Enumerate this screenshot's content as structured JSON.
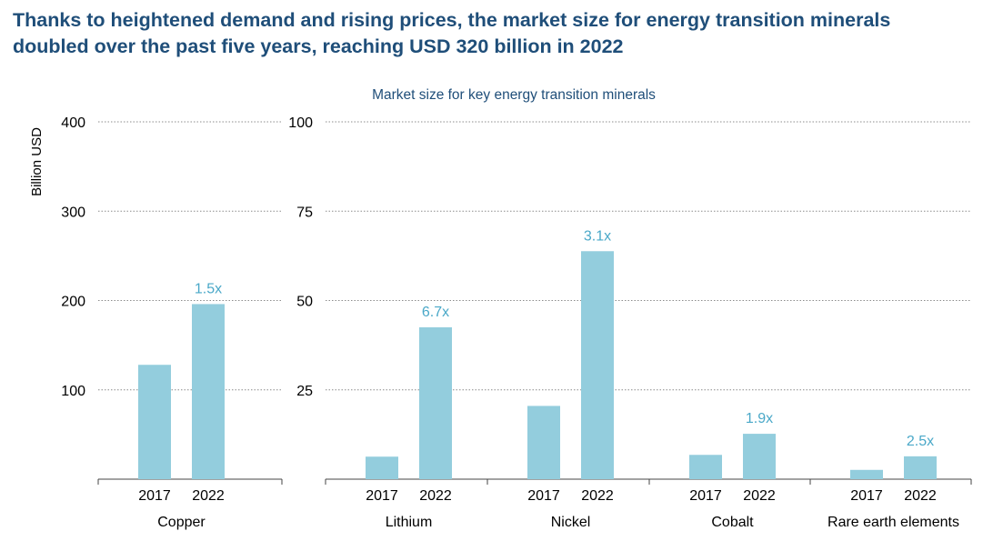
{
  "headline": {
    "line1": "Thanks to heightened demand and rising prices, the market size for energy transition minerals",
    "line2": "doubled over the past five years, reaching USD 320 billion in 2022"
  },
  "colors": {
    "headline": "#1f4e79",
    "subtitle": "#1f4e79",
    "bar": "#93cddd",
    "multiplier": "#4aa8c8",
    "text": "#000000",
    "grid": "#8c8c8c"
  },
  "chart_data": [
    {
      "type": "bar",
      "title": "Market size for key energy transition minerals",
      "ylabel": "Billion USD",
      "ylim": [
        0,
        400
      ],
      "yticks": [
        "100",
        "200",
        "300",
        "400"
      ],
      "grid": true,
      "categories": [
        "Copper"
      ],
      "x": [
        "2017",
        "2022"
      ],
      "groups": [
        {
          "name": "Copper",
          "values": [
            128,
            196
          ],
          "multiplier": "1.5x"
        }
      ]
    },
    {
      "type": "bar",
      "ylim": [
        0,
        100
      ],
      "yticks": [
        "25",
        "50",
        "75",
        "100"
      ],
      "grid": true,
      "categories": [
        "Lithium",
        "Nickel",
        "Cobalt",
        "Rare earth elements"
      ],
      "x": [
        "2017",
        "2022"
      ],
      "groups": [
        {
          "name": "Lithium",
          "values": [
            6.3,
            42.5
          ],
          "multiplier": "6.7x"
        },
        {
          "name": "Nickel",
          "values": [
            20.5,
            63.8
          ],
          "multiplier": "3.1x"
        },
        {
          "name": "Cobalt",
          "values": [
            6.8,
            12.7
          ],
          "multiplier": "1.9x"
        },
        {
          "name": "Rare earth elements",
          "values": [
            2.6,
            6.4
          ],
          "multiplier": "2.5x"
        }
      ]
    }
  ]
}
